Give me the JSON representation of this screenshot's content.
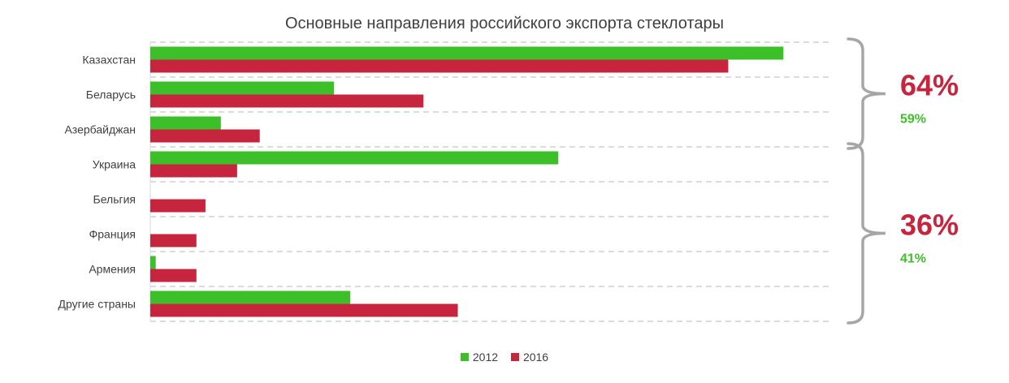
{
  "chart_data": {
    "type": "bar",
    "orientation": "horizontal",
    "title": "Основные направления российского экспорта стеклотары",
    "categories": [
      "Казахстан",
      "Беларусь",
      "Азербайджан",
      "Украина",
      "Бельгия",
      "Франция",
      "Армения",
      "Другие страны"
    ],
    "series": [
      {
        "name": "2012",
        "color": "#3dbf2a",
        "values": [
          70,
          20.3,
          7.8,
          45.1,
          0,
          0,
          0.6,
          22.1
        ]
      },
      {
        "name": "2016",
        "color": "#c7253e",
        "values": [
          63.9,
          30.2,
          12.1,
          9.6,
          6.1,
          5.1,
          5.1,
          34
        ]
      }
    ],
    "xlim": [
      0,
      75
    ],
    "grid": "horizontal-dashed",
    "legend_position": "bottom",
    "groups": [
      {
        "from": 0,
        "to": 2,
        "pct_2016": "64%",
        "pct_2012": "59%"
      },
      {
        "from": 3,
        "to": 7,
        "pct_2016": "36%",
        "pct_2012": "41%"
      }
    ]
  }
}
